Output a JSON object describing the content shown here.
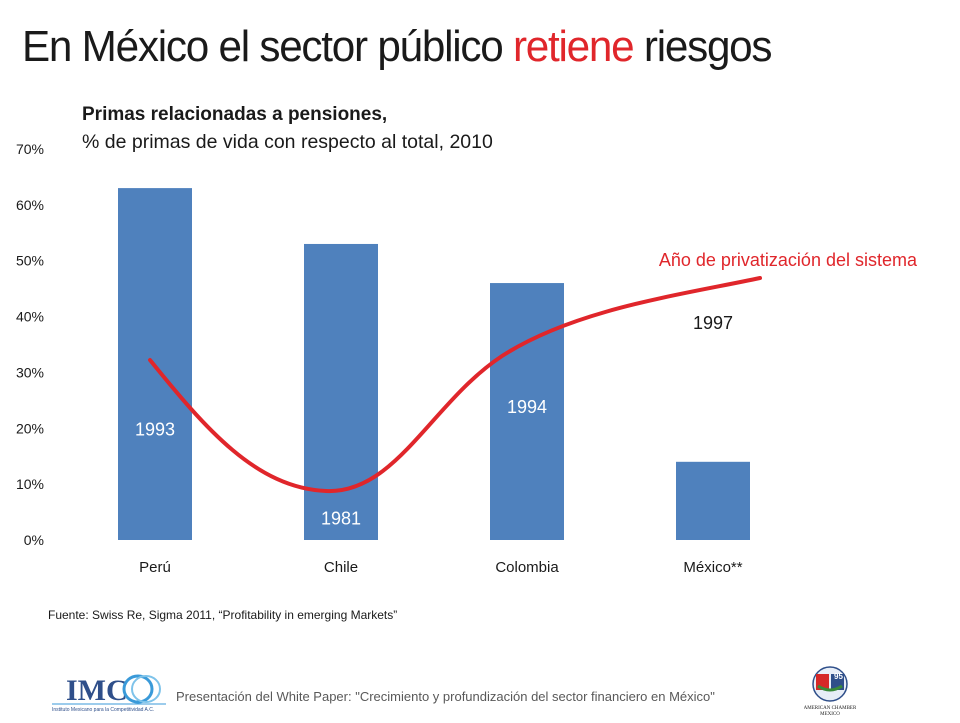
{
  "header": {
    "title_pre": "En México el sector público ",
    "title_highlight": "retiene",
    "title_post": " riesgos"
  },
  "chart_data": {
    "type": "bar",
    "title": "Primas relacionadas a pensiones,",
    "subtitle": "% de primas de vida con respecto al total, 2010",
    "categories": [
      "Perú",
      "Chile",
      "Colombia",
      "México**"
    ],
    "values": [
      63,
      53,
      46,
      14
    ],
    "yticks": [
      "0%",
      "10%",
      "20%",
      "30%",
      "40%",
      "50%",
      "60%",
      "70%"
    ],
    "ylim": [
      0,
      70
    ],
    "bar_color": "#4f81bd",
    "grid": false,
    "legend": "none",
    "annotation": {
      "label": "Año de privatización del sistema",
      "color": "#e0262b",
      "privatization_years": [
        "1993",
        "1981",
        "1994",
        "1997"
      ],
      "year_levels": [
        20,
        4,
        24,
        39
      ]
    }
  },
  "source_note": "Fuente: Swiss Re, Sigma 2011, “Profitability in emerging Markets”",
  "footer": {
    "text": "Presentación del White Paper: \"Crecimiento y profundización del sector financiero en México\"",
    "imco_logo_text": "IMCO",
    "imco_logo_subtext": "Instituto Mexicano para la Competitividad A.C.",
    "amcham_logo_text": "AMERICAN CHAMBER MEXICO",
    "amcham_badge": "95"
  }
}
